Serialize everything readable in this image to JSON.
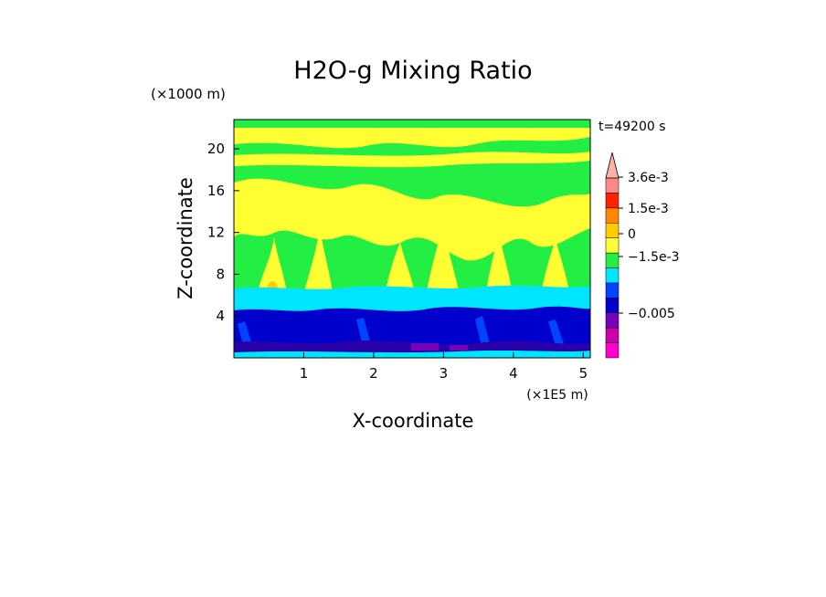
{
  "chart_data": {
    "type": "heatmap",
    "title": "H2O-g Mixing Ratio",
    "xlabel": "X-coordinate",
    "ylabel": "Z-coordinate",
    "x_unit": "(×1E5 m)",
    "y_unit": "(×1000 m)",
    "time_label": "t=49200 s",
    "xlim": [
      0,
      5.1
    ],
    "ylim": [
      0,
      22.8
    ],
    "x_ticks": [
      "1",
      "2",
      "3",
      "4",
      "5"
    ],
    "y_ticks": [
      "4",
      "8",
      "12",
      "16",
      "20"
    ],
    "colorbar_labels": [
      "3.6e-3",
      "1.5e-3",
      "0",
      "−1.5e-3",
      "−0.005"
    ],
    "colorbar_colors": [
      "#ff00cc",
      "#cc00aa",
      "#7700bb",
      "#0000cc",
      "#0044ff",
      "#00e5ff",
      "#22ee44",
      "#ffff33",
      "#ffcc00",
      "#ff8800",
      "#ff2200",
      "#ff8888"
    ],
    "layers": [
      {
        "z_from": 0,
        "z_to": 1.2,
        "class": "dark-blue"
      },
      {
        "z_from": 1.2,
        "z_to": 4.5,
        "class": "blue"
      },
      {
        "z_from": 4.5,
        "z_to": 6.5,
        "class": "cyan"
      },
      {
        "z_from": 6.5,
        "z_to": 22.8,
        "class": "green"
      }
    ]
  }
}
